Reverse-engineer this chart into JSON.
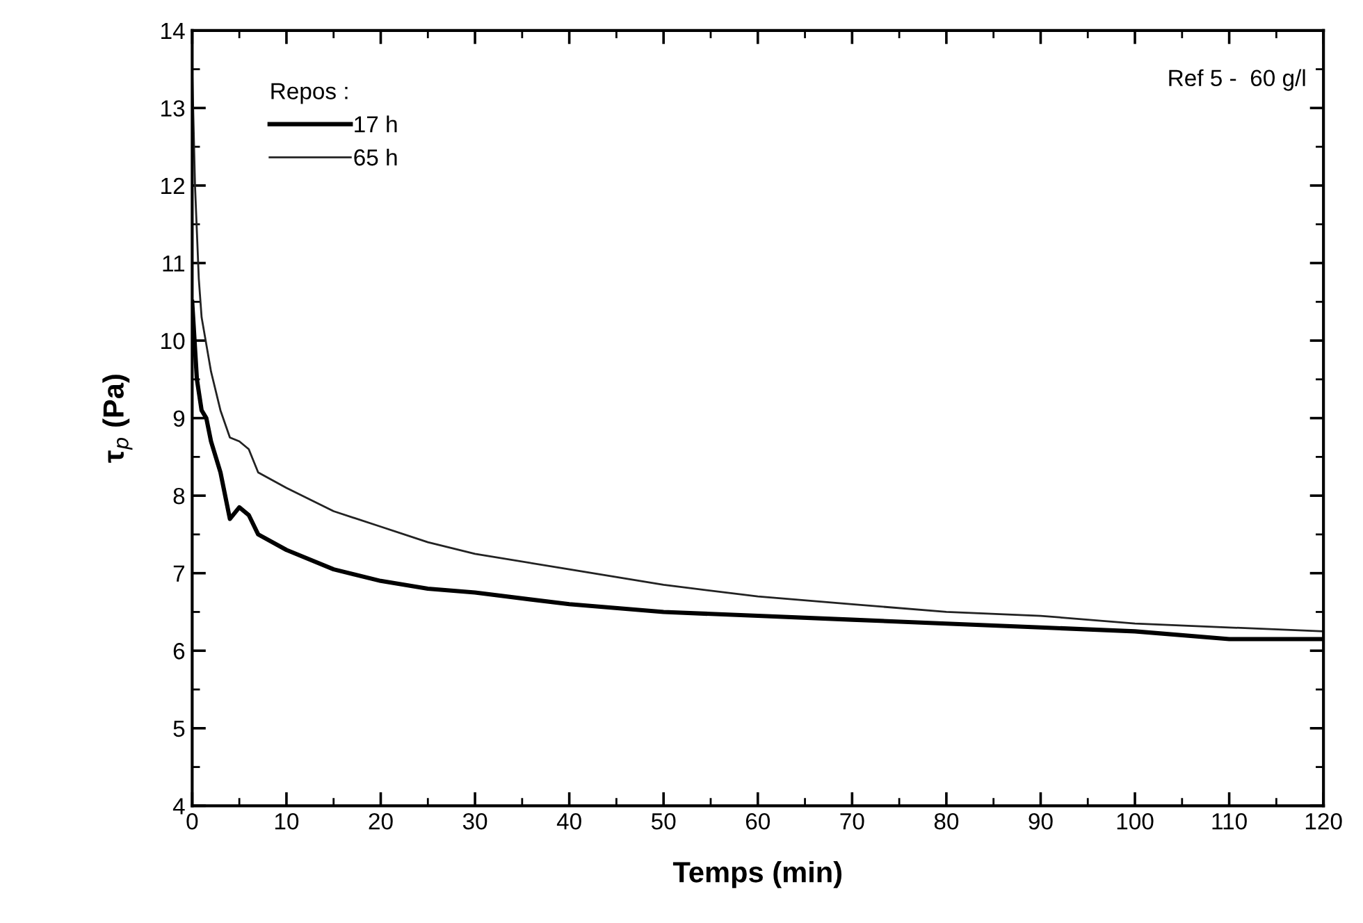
{
  "chart_data": {
    "type": "line",
    "xlabel": "Temps (min)",
    "ylabel": "τ$_{p}$ (Pa)",
    "legend_title": "Repos :",
    "legend": "top left",
    "grid": false,
    "marker": "none",
    "line_style": "solid",
    "annotations": [
      "Ref 5 -  60 g/l"
    ],
    "xlim": [
      0,
      120
    ],
    "ylim": [
      4,
      14
    ],
    "xticks": [
      0,
      {
        "value": 5,
        "label": null
      },
      10,
      {
        "value": 15,
        "label": null
      },
      20,
      {
        "value": 25,
        "label": null
      },
      30,
      {
        "value": 35,
        "label": null
      },
      40,
      {
        "value": 45,
        "label": null
      },
      50,
      {
        "value": 55,
        "label": null
      },
      60,
      {
        "value": 65,
        "label": null
      },
      70,
      {
        "value": 75,
        "label": null
      },
      80,
      {
        "value": 85,
        "label": null
      },
      90,
      {
        "value": 95,
        "label": null
      },
      100,
      {
        "value": 105,
        "label": null
      },
      110,
      {
        "value": 115,
        "label": null
      },
      120
    ],
    "yticks": [
      4,
      {
        "value": 4.5,
        "label": null
      },
      5,
      {
        "value": 5.5,
        "label": null
      },
      6,
      {
        "value": 6.5,
        "label": null
      },
      7,
      {
        "value": 7.5,
        "label": null
      },
      8,
      {
        "value": 8.5,
        "label": null
      },
      9,
      {
        "value": 9.5,
        "label": null
      },
      10,
      {
        "value": 10.5,
        "label": null
      },
      11,
      {
        "value": 11.5,
        "label": null
      },
      12,
      {
        "value": 12.5,
        "label": null
      },
      13,
      {
        "value": 13.5,
        "label": null
      },
      14
    ],
    "x": [
      0,
      0.5,
      1,
      1.5,
      2,
      3,
      4,
      5,
      6,
      7,
      10,
      15,
      20,
      25,
      30,
      40,
      50,
      60,
      70,
      80,
      90,
      100,
      110,
      120
    ],
    "series": [
      {
        "name": "17 h",
        "color": "#000000",
        "values": [
          10.5,
          9.5,
          9.1,
          9.0,
          8.7,
          8.3,
          7.7,
          7.85,
          7.75,
          7.5,
          7.3,
          7.05,
          6.9,
          6.8,
          6.75,
          6.6,
          6.5,
          6.45,
          6.4,
          6.35,
          6.3,
          6.25,
          6.15,
          6.15
        ]
      },
      {
        "name": "65 h",
        "color": "#222222",
        "x": [
          0,
          0.3,
          0.7,
          1,
          2,
          3,
          4,
          5,
          6,
          7,
          10,
          15,
          20,
          25,
          30,
          40,
          50,
          60,
          70,
          80,
          90,
          100,
          110,
          120
        ],
        "values": [
          13.5,
          12,
          10.8,
          10.3,
          9.6,
          9.1,
          8.75,
          8.7,
          8.6,
          8.3,
          8.1,
          7.8,
          7.6,
          7.4,
          7.25,
          7.05,
          6.85,
          6.7,
          6.6,
          6.5,
          6.45,
          6.35,
          6.3,
          6.25
        ]
      }
    ]
  }
}
